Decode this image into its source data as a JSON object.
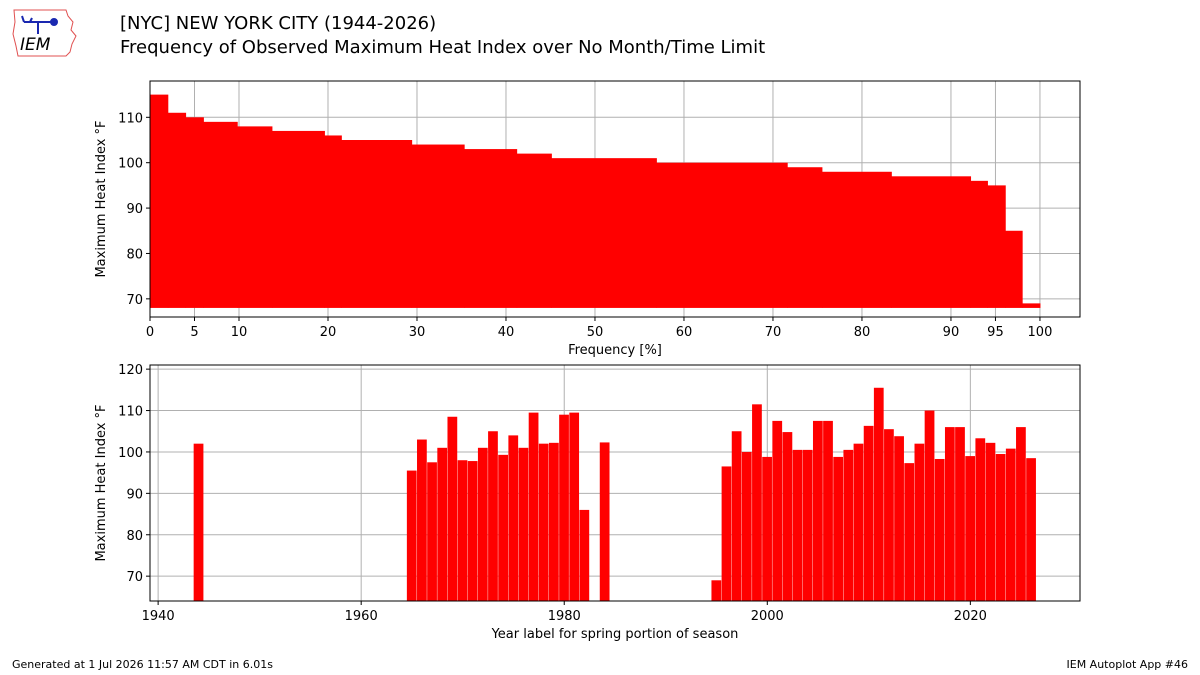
{
  "header": {
    "title_line1": "[NYC] NEW YORK CITY (1944-2026)",
    "title_line2": "Frequency of Observed Maximum Heat Index over No Month/Time Limit",
    "logo_text": "IEM"
  },
  "footer": {
    "left": "Generated at 1 Jul 2026 11:57 AM CDT in 6.01s",
    "right": "IEM Autoplot App #46"
  },
  "colors": {
    "bars": "#ff0000",
    "grid": "#b0b0b0",
    "logo": "#d22"
  },
  "chart_data": [
    {
      "type": "bar",
      "orientation": "horizontal-step",
      "xlabel": "Frequency [%]",
      "ylabel": "Maximum Heat Index °F",
      "xlim": [
        0,
        104.5
      ],
      "ylim": [
        66,
        118
      ],
      "xticks": [
        0,
        5,
        10,
        20,
        30,
        40,
        50,
        60,
        70,
        80,
        90,
        95,
        100
      ],
      "yticks": [
        70,
        80,
        90,
        100,
        110
      ],
      "grid": true,
      "bar_baseline": 68,
      "steps": [
        {
          "heat_index": 115,
          "frequency": 2.0
        },
        {
          "heat_index": 111,
          "frequency": 4.0
        },
        {
          "heat_index": 110,
          "frequency": 6.0
        },
        {
          "heat_index": 109,
          "frequency": 9.8
        },
        {
          "heat_index": 108,
          "frequency": 13.7
        },
        {
          "heat_index": 107,
          "frequency": 19.6
        },
        {
          "heat_index": 106,
          "frequency": 21.5
        },
        {
          "heat_index": 105,
          "frequency": 29.4
        },
        {
          "heat_index": 104,
          "frequency": 35.3
        },
        {
          "heat_index": 103,
          "frequency": 41.2
        },
        {
          "heat_index": 102,
          "frequency": 45.1
        },
        {
          "heat_index": 101,
          "frequency": 56.9
        },
        {
          "heat_index": 100,
          "frequency": 71.6
        },
        {
          "heat_index": 99,
          "frequency": 75.5
        },
        {
          "heat_index": 98,
          "frequency": 83.3
        },
        {
          "heat_index": 97,
          "frequency": 92.2
        },
        {
          "heat_index": 96,
          "frequency": 94.1
        },
        {
          "heat_index": 95,
          "frequency": 96.1
        },
        {
          "heat_index": 85,
          "frequency": 98.0
        },
        {
          "heat_index": 69,
          "frequency": 100.0
        }
      ]
    },
    {
      "type": "bar",
      "xlabel": "Year label for spring portion of season",
      "ylabel": "Maximum Heat Index °F",
      "xlim": [
        1939.2,
        2030.8
      ],
      "ylim": [
        64,
        121
      ],
      "xticks": [
        1940,
        1960,
        1980,
        2000,
        2020
      ],
      "yticks": [
        70,
        80,
        90,
        100,
        110,
        120
      ],
      "grid": true,
      "x": [
        1944,
        1965,
        1966,
        1967,
        1968,
        1969,
        1970,
        1971,
        1972,
        1973,
        1974,
        1975,
        1976,
        1977,
        1978,
        1979,
        1980,
        1981,
        1982,
        1984,
        1995,
        1996,
        1997,
        1998,
        1999,
        2000,
        2001,
        2002,
        2003,
        2004,
        2005,
        2006,
        2007,
        2008,
        2009,
        2010,
        2011,
        2012,
        2013,
        2014,
        2015,
        2016,
        2017,
        2018,
        2019,
        2020,
        2021,
        2022,
        2023,
        2024,
        2025,
        2026
      ],
      "values": [
        102,
        95.5,
        103,
        97.5,
        101,
        108.5,
        98,
        97.8,
        101,
        105,
        99.3,
        104,
        101,
        109.5,
        102,
        102.2,
        109,
        109.5,
        86,
        102.3,
        69,
        96.5,
        105,
        100,
        111.5,
        98.8,
        107.5,
        104.8,
        100.5,
        100.5,
        107.5,
        107.5,
        98.8,
        100.5,
        102,
        106.3,
        115.5,
        105.5,
        103.8,
        97.3,
        102,
        110,
        98.3,
        106,
        106,
        99,
        103.3,
        102.2,
        99.5,
        100.8,
        106,
        98.5
      ]
    }
  ]
}
